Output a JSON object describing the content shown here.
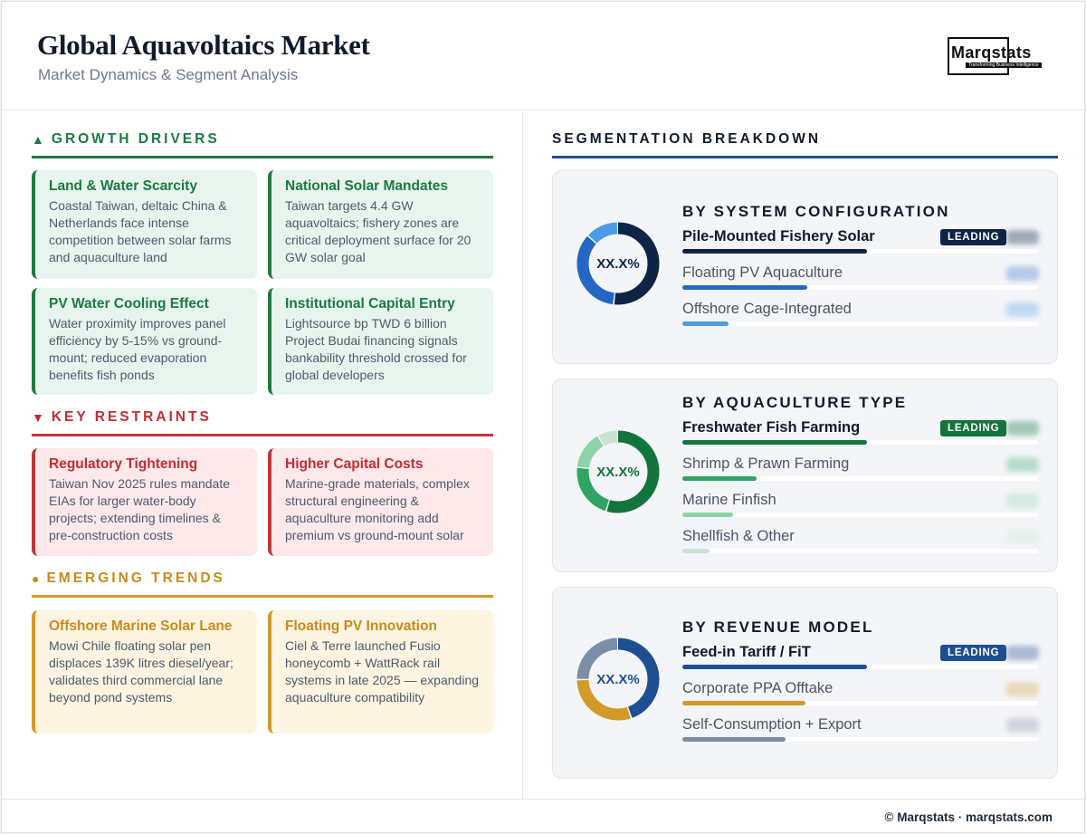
{
  "header": {
    "title": "Global Aquavoltaics Market",
    "subtitle": "Market Dynamics & Segment Analysis",
    "logo_text": "Marqstats",
    "logo_tagline": "Transforming Business Intelligence"
  },
  "drivers": {
    "heading": "GROWTH DRIVERS",
    "mark": "▲",
    "color": "#1a7a41",
    "cards": [
      {
        "title": "Land & Water Scarcity",
        "text": "Coastal Taiwan, deltaic China & Netherlands face intense competition between solar farms and aquaculture land"
      },
      {
        "title": "National Solar Mandates",
        "text": "Taiwan targets 4.4 GW aquavoltaics; fishery zones are critical deployment surface for 20 GW solar goal"
      },
      {
        "title": "PV Water Cooling Effect",
        "text": "Water proximity improves panel efficiency by 5-15% vs ground-mount; reduced evaporation benefits fish ponds"
      },
      {
        "title": "Institutional Capital Entry",
        "text": "Lightsource bp TWD 6 billion Project Budai financing signals bankability threshold crossed for global developers"
      }
    ]
  },
  "restraints": {
    "heading": "KEY RESTRAINTS",
    "mark": "▼",
    "color": "#c32c33",
    "cards": [
      {
        "title": "Regulatory Tightening",
        "text": "Taiwan Nov 2025 rules mandate EIAs for larger water-body projects; extending timelines & pre-construction costs"
      },
      {
        "title": "Higher Capital Costs",
        "text": "Marine-grade materials, complex structural engineering & aquaculture monitoring add premium vs ground-mount solar"
      }
    ]
  },
  "trends": {
    "heading": "EMERGING TRENDS",
    "mark": "●",
    "color": "#c98a1c",
    "cards": [
      {
        "title": "Offshore Marine Solar Lane",
        "text": "Mowi Chile floating solar pen displaces 139K litres diesel/year; validates third commercial lane beyond pond systems"
      },
      {
        "title": "Floating PV Innovation",
        "text": "Ciel & Terre launched Fusio honeycomb + WattRack rail systems in late 2025 — expanding aquaculture compatibility"
      }
    ]
  },
  "segmentation": {
    "heading": "SEGMENTATION BREAKDOWN",
    "badge_label": "LEADING",
    "panels": [
      {
        "title": "BY SYSTEM CONFIGURATION",
        "center_label": "XX.X%",
        "accent": "#0f2347",
        "rows": [
          {
            "name": "Pile-Mounted Fishery Solar",
            "share": 0.52,
            "color": "#0f2347",
            "leading": true
          },
          {
            "name": "Floating PV Aquaculture",
            "share": 0.35,
            "color": "#2467c4",
            "leading": false
          },
          {
            "name": "Offshore Cage-Integrated",
            "share": 0.13,
            "color": "#4c9be4",
            "leading": false
          }
        ]
      },
      {
        "title": "BY AQUACULTURE TYPE",
        "center_label": "XX.X%",
        "accent": "#13743d",
        "rows": [
          {
            "name": "Freshwater Fish Farming",
            "share": 0.55,
            "color": "#13743d",
            "leading": true
          },
          {
            "name": "Shrimp & Prawn Farming",
            "share": 0.22,
            "color": "#2fa561",
            "leading": false
          },
          {
            "name": "Marine Finfish",
            "share": 0.15,
            "color": "#8dd3a8",
            "leading": false
          },
          {
            "name": "Shellfish & Other",
            "share": 0.08,
            "color": "#c9e3d3",
            "leading": false
          }
        ]
      },
      {
        "title": "BY REVENUE MODEL",
        "center_label": "XX.X%",
        "accent": "#1e4f91",
        "rows": [
          {
            "name": "Feed-in Tariff / FiT",
            "share": 0.45,
            "color": "#1e4f91",
            "leading": true
          },
          {
            "name": "Corporate PPA Offtake",
            "share": 0.3,
            "color": "#d39a2a",
            "leading": false
          },
          {
            "name": "Self-Consumption + Export",
            "share": 0.25,
            "color": "#7a8ea8",
            "leading": false
          }
        ]
      }
    ]
  },
  "footer": {
    "text": "© Marqstats · marqstats.com"
  }
}
